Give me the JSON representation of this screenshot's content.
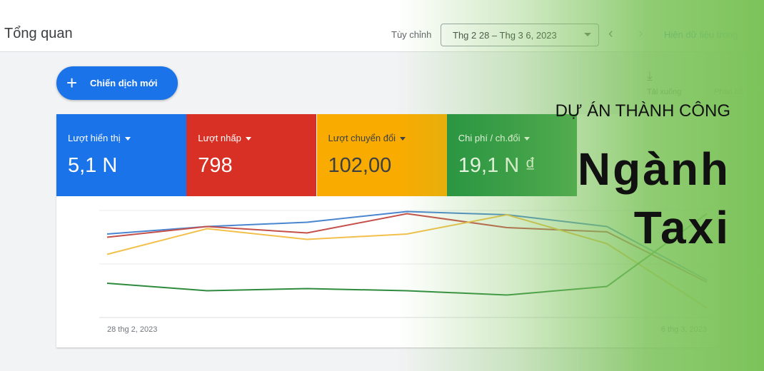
{
  "header": {
    "title": "Tổng quan",
    "range_label": "Tùy chỉnh",
    "date_range": "Thg 2 28 – Thg 3 6, 2023",
    "show_data": "Hiện dữ liệu trong"
  },
  "toolbar": {
    "new_campaign": "Chiến dịch mới",
    "download": "Tải xuống",
    "attribution": "Phân bổ"
  },
  "metrics": [
    {
      "label": "Lượt hiển thị",
      "value": "5,1 N",
      "color": "#1a73e8",
      "text": "#ffffff"
    },
    {
      "label": "Lượt nhấp",
      "value": "798",
      "color": "#d93025",
      "text": "#ffffff"
    },
    {
      "label": "Lượt chuyển đổi",
      "value": "102,00",
      "color": "#f9ab00",
      "text": "#3c4043"
    },
    {
      "label": "Chi phí / ch.đổi",
      "value": "19,1 N ₫",
      "color": "#1e8e3e",
      "text": "#ffffff"
    }
  ],
  "chart_data": {
    "type": "line",
    "categories": [
      "28 thg 2, 2023",
      null,
      null,
      null,
      null,
      null,
      "6 thg 3, 2023"
    ],
    "series": [
      {
        "color": "#4a86d0",
        "values": [
          78,
          85,
          89,
          99,
          96,
          85,
          35
        ]
      },
      {
        "color": "#c5504a",
        "values": [
          75,
          85,
          79,
          97,
          84,
          80,
          33
        ]
      },
      {
        "color": "#f2c04a",
        "values": [
          59,
          83,
          73,
          78,
          96,
          69,
          9
        ]
      },
      {
        "color": "#2e8b3e",
        "values": [
          32,
          25,
          27,
          25,
          21,
          29,
          97
        ]
      }
    ],
    "ylim": [
      0,
      100
    ]
  },
  "overlay": {
    "kicker": "DỰ ÁN THÀNH CÔNG",
    "title_lines": [
      "Ngành",
      "Taxi"
    ]
  }
}
